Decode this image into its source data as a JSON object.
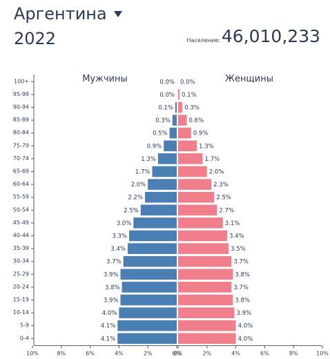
{
  "header": {
    "country": "Аргентина",
    "year": "2022",
    "population_label": "Население:",
    "population_value": "46,010,233"
  },
  "colors": {
    "male": "#4a7fb4",
    "female": "#f07e8b",
    "text": "#2b3a55",
    "axis": "#555555"
  },
  "chart_data": {
    "type": "bar",
    "orientation": "population-pyramid",
    "categories": [
      "0-4",
      "5-9",
      "10-14",
      "15-19",
      "20-24",
      "25-29",
      "30-34",
      "35-39",
      "40-44",
      "45-49",
      "50-54",
      "55-59",
      "60-64",
      "65-69",
      "70-74",
      "75-79",
      "80-84",
      "85-89",
      "90-94",
      "95-99",
      "100+"
    ],
    "series": [
      {
        "name": "Мужчины",
        "values": [
          4.1,
          4.1,
          4.0,
          3.9,
          3.8,
          3.9,
          3.7,
          3.4,
          3.3,
          3.0,
          2.5,
          2.2,
          2.0,
          1.7,
          1.3,
          0.9,
          0.5,
          0.3,
          0.1,
          0.0,
          0.0
        ],
        "labels": [
          "4.1%",
          "4.1%",
          "4.0%",
          "3.9%",
          "3.8%",
          "3.9%",
          "3.7%",
          "3.4%",
          "3.3%",
          "3.0%",
          "2.5%",
          "2.2%",
          "2.0%",
          "1.7%",
          "1.3%",
          "0.9%",
          "0.5%",
          "0.3%",
          "0.1%",
          "0.0%",
          "0.0%"
        ]
      },
      {
        "name": "Женщины",
        "values": [
          4.0,
          4.0,
          3.9,
          3.8,
          3.7,
          3.8,
          3.7,
          3.5,
          3.4,
          3.1,
          2.7,
          2.5,
          2.3,
          2.0,
          1.7,
          1.3,
          0.9,
          0.6,
          0.3,
          0.1,
          0.0
        ],
        "labels": [
          "4.0%",
          "4.0%",
          "3.9%",
          "3.8%",
          "3.7%",
          "3.8%",
          "3.7%",
          "3.5%",
          "3.4%",
          "3.1%",
          "2.7%",
          "2.5%",
          "2.3%",
          "2.0%",
          "1.7%",
          "1.3%",
          "0.9%",
          "0.6%",
          "0.3%",
          "0.1%",
          "0.0%"
        ]
      }
    ],
    "xlim": [
      0,
      10
    ],
    "xticks_left": [
      "10%",
      "8%",
      "6%",
      "4%",
      "2%",
      "0%"
    ],
    "xticks_right": [
      "0%",
      "2%",
      "4%",
      "6%",
      "8%",
      "10%"
    ],
    "grid": false
  }
}
